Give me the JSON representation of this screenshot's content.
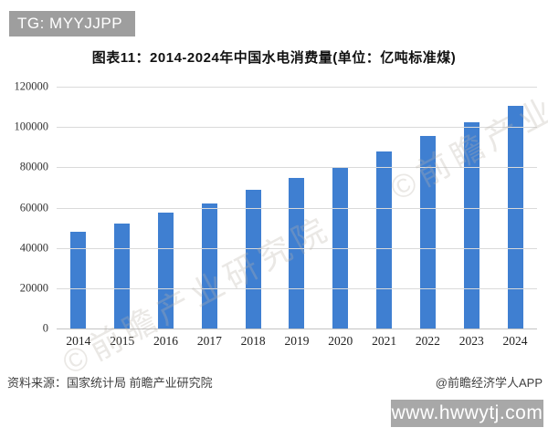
{
  "header": {
    "badge_label": "TG: MYYJJPP",
    "badge_color": "#9e9e9e"
  },
  "chart_data": {
    "type": "bar",
    "title": "图表11：2014-2024年中国水电消费量(单位：亿吨标准煤)",
    "categories": [
      "2014",
      "2015",
      "2016",
      "2017",
      "2018",
      "2019",
      "2020",
      "2021",
      "2022",
      "2023",
      "2024"
    ],
    "values": [
      48000,
      52000,
      57500,
      62000,
      69000,
      74500,
      80000,
      88000,
      95500,
      102500,
      110500
    ],
    "xlabel": "",
    "ylabel": "",
    "ylim": [
      0,
      120000
    ],
    "ytick_interval": 20000,
    "yticks": [
      "0",
      "20000",
      "40000",
      "60000",
      "80000",
      "100000",
      "120000"
    ],
    "grid": true,
    "legend": "none",
    "bar_color": "#3f7fd1",
    "gridline_color": "#dadada",
    "watermark": "©前瞻产业研究院"
  },
  "footer": {
    "source": "资料来源：国家统计局 前瞻产业研究院",
    "credit": "@前瞻经济学人APP",
    "site_badge": "www.hwwytj.com",
    "site_badge_color": "#a8a8a8"
  }
}
